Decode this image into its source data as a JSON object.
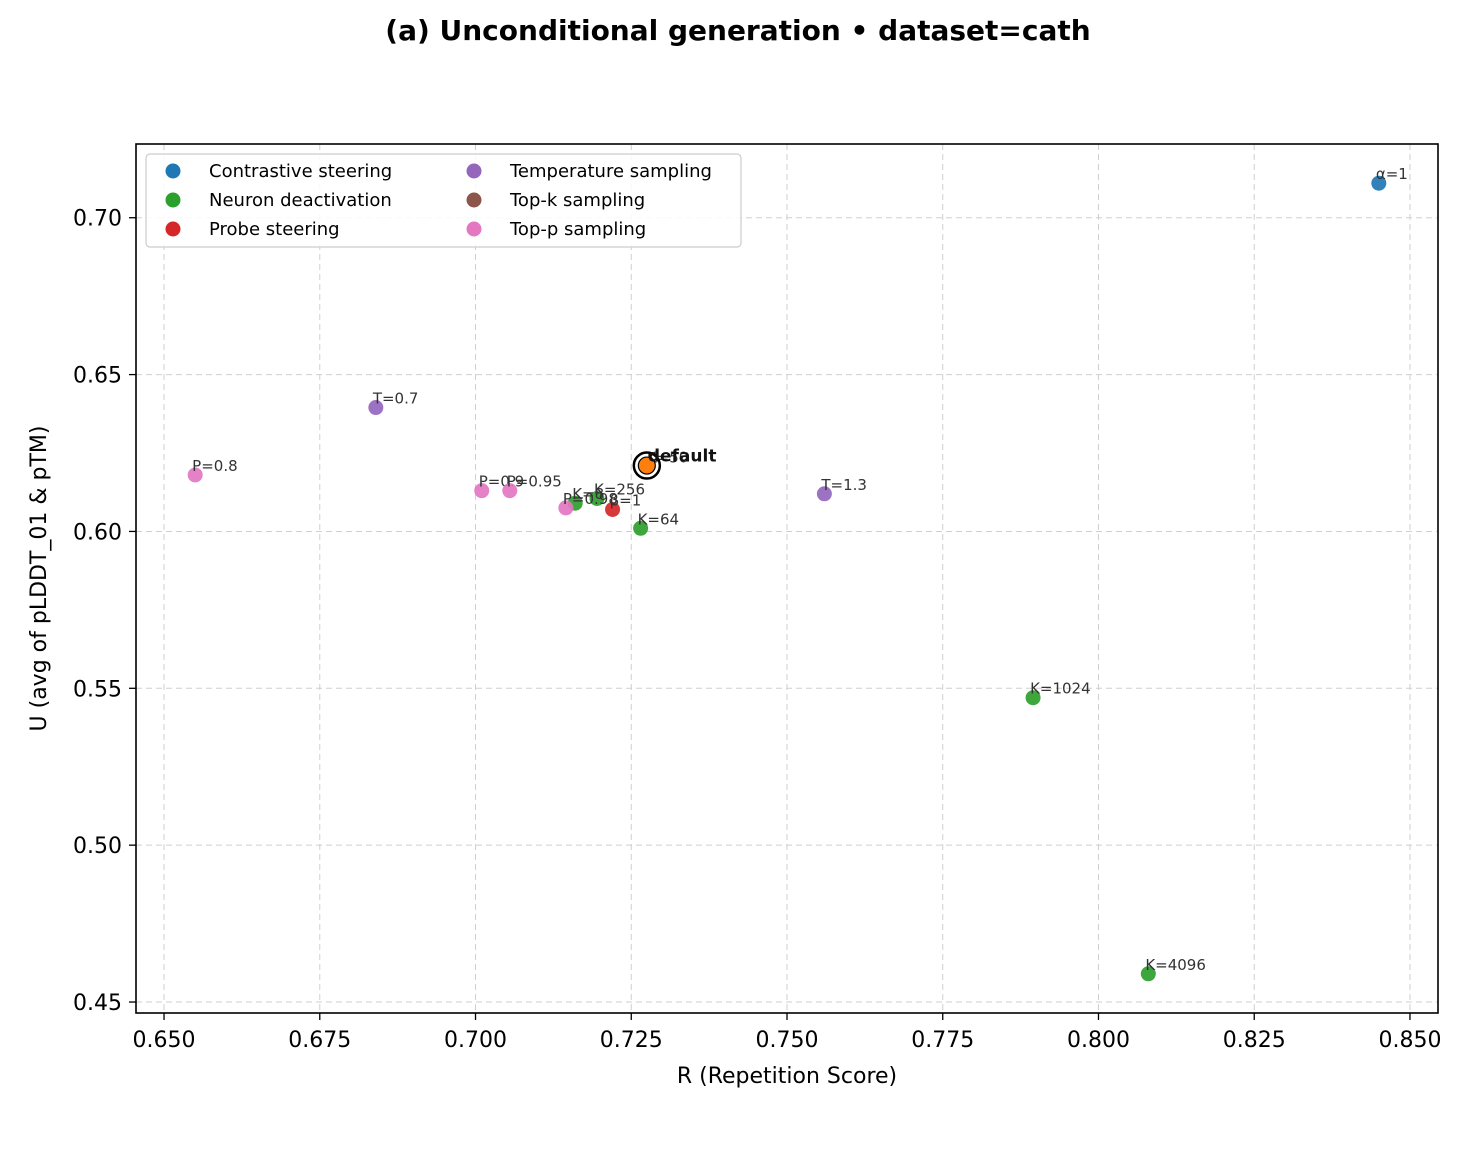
{
  "chart_data": {
    "type": "scatter",
    "title": "(a) Unconditional generation • dataset=cath",
    "xlabel": "R (Repetition Score)",
    "ylabel": "U (avg of pLDDT_01 & pTM)",
    "xlim": [
      0.6455,
      0.8545
    ],
    "ylim": [
      0.4465,
      0.7235
    ],
    "xticks": [
      "0.650",
      "0.675",
      "0.700",
      "0.725",
      "0.750",
      "0.775",
      "0.800",
      "0.825",
      "0.850"
    ],
    "yticks": [
      "0.45",
      "0.50",
      "0.55",
      "0.60",
      "0.65",
      "0.70"
    ],
    "grid": true,
    "legend_position": "top-left",
    "legend": [
      {
        "name": "Contrastive steering",
        "color": "#1f77b4"
      },
      {
        "name": "Neuron deactivation",
        "color": "#2ca02c"
      },
      {
        "name": "Probe steering",
        "color": "#d62728"
      },
      {
        "name": "Temperature sampling",
        "color": "#9467bd"
      },
      {
        "name": "Top-k sampling",
        "color": "#8c564b"
      },
      {
        "name": "Top-p sampling",
        "color": "#e377c2"
      }
    ],
    "series": [
      {
        "name": "Contrastive steering",
        "color": "#1f77b4",
        "points": [
          {
            "x": 0.845,
            "y": 0.711,
            "label": "α=1"
          }
        ]
      },
      {
        "name": "Neuron deactivation",
        "color": "#2ca02c",
        "points": [
          {
            "x": 0.7265,
            "y": 0.601,
            "label": "K=64"
          },
          {
            "x": 0.7195,
            "y": 0.6105,
            "label": "K=256"
          },
          {
            "x": 0.716,
            "y": 0.609,
            "label": "K=8"
          },
          {
            "x": 0.7895,
            "y": 0.547,
            "label": "K=1024"
          },
          {
            "x": 0.808,
            "y": 0.459,
            "label": "K=4096"
          }
        ]
      },
      {
        "name": "Probe steering",
        "color": "#d62728",
        "points": [
          {
            "x": 0.722,
            "y": 0.607,
            "label": "β=1"
          }
        ]
      },
      {
        "name": "Temperature sampling",
        "color": "#9467bd",
        "points": [
          {
            "x": 0.684,
            "y": 0.6395,
            "label": "T=0.7"
          },
          {
            "x": 0.756,
            "y": 0.612,
            "label": "T=1.3"
          }
        ]
      },
      {
        "name": "Top-k sampling",
        "color": "#8c564b",
        "points": []
      },
      {
        "name": "Top-p sampling",
        "color": "#e377c2",
        "points": [
          {
            "x": 0.655,
            "y": 0.618,
            "label": "P=0.8"
          },
          {
            "x": 0.701,
            "y": 0.613,
            "label": "P=0.9"
          },
          {
            "x": 0.7055,
            "y": 0.613,
            "label": "P=0.95"
          },
          {
            "x": 0.7145,
            "y": 0.6075,
            "label": "P=0.98"
          }
        ]
      }
    ],
    "default_point": {
      "x": 0.7275,
      "y": 0.621,
      "label": "default",
      "overlapping_label": "K=50",
      "color": "#ff7f0e"
    }
  }
}
